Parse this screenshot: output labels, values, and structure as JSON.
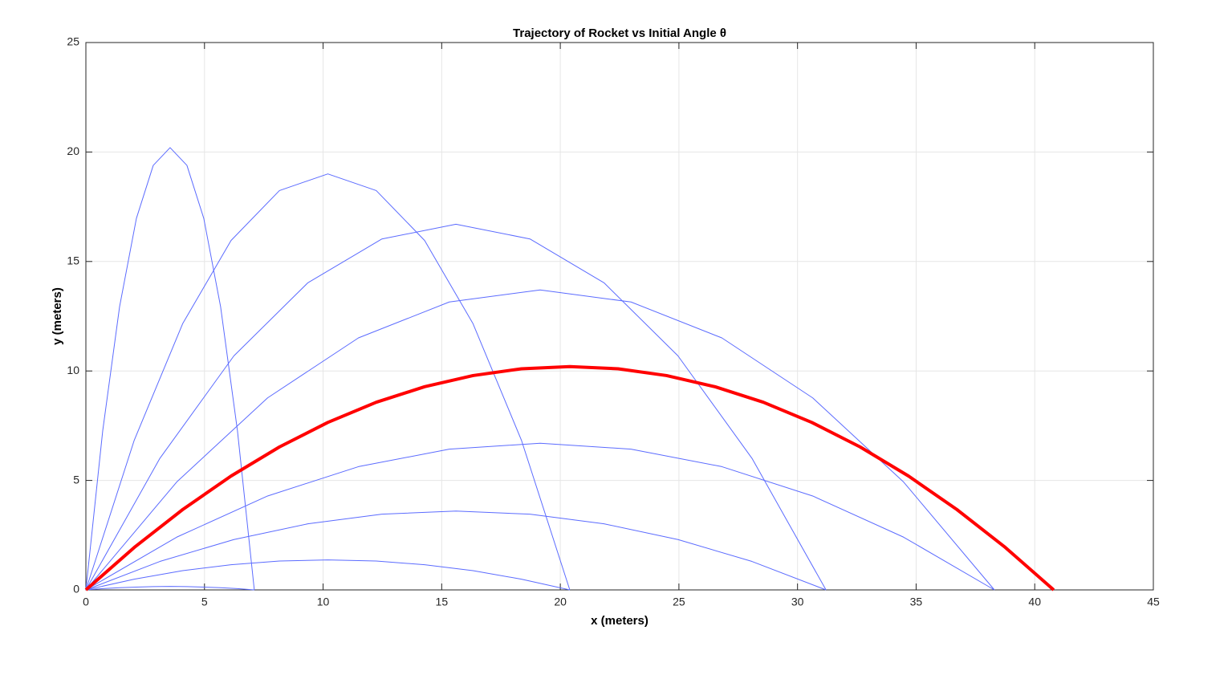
{
  "chart_data": {
    "type": "line",
    "title": "Trajectory of Rocket vs Initial Angle θ",
    "xlabel": "x (meters)",
    "ylabel": "y (meters)",
    "xlim": [
      0,
      45
    ],
    "ylim": [
      0,
      25
    ],
    "xticks": [
      0,
      5,
      10,
      15,
      20,
      25,
      30,
      35,
      40,
      45
    ],
    "yticks": [
      0,
      5,
      10,
      15,
      20,
      25
    ],
    "grid": true,
    "series": [
      {
        "color": "#5b6bff",
        "linewidth": 1,
        "x": [
          0,
          0.71,
          1.42,
          2.13,
          2.84,
          3.55,
          4.26,
          4.97,
          5.68,
          6.39,
          7.1
        ],
        "values": [
          0,
          7.27,
          12.93,
          16.97,
          19.39,
          20.2,
          19.39,
          16.97,
          12.93,
          7.27,
          0
        ]
      },
      {
        "color": "#5b6bff",
        "linewidth": 1,
        "x": [
          0,
          2.04,
          4.08,
          6.12,
          8.16,
          10.2,
          12.24,
          14.28,
          16.32,
          18.36,
          20.4
        ],
        "values": [
          0,
          6.84,
          12.16,
          15.96,
          18.24,
          19.0,
          18.24,
          15.96,
          12.16,
          6.84,
          0
        ]
      },
      {
        "color": "#5b6bff",
        "linewidth": 1,
        "x": [
          0,
          3.12,
          6.24,
          9.36,
          12.48,
          15.6,
          18.72,
          21.84,
          24.96,
          28.08,
          31.2
        ],
        "values": [
          0,
          6.01,
          10.69,
          14.03,
          16.03,
          16.7,
          16.03,
          14.03,
          10.69,
          6.01,
          0
        ]
      },
      {
        "color": "#5b6bff",
        "linewidth": 1,
        "x": [
          0,
          3.83,
          7.66,
          11.49,
          15.32,
          19.15,
          22.98,
          26.81,
          30.64,
          34.47,
          38.3
        ],
        "values": [
          0,
          4.93,
          8.77,
          11.51,
          13.15,
          13.7,
          13.15,
          11.51,
          8.77,
          4.93,
          0
        ]
      },
      {
        "color": "#5b6bff",
        "linewidth": 1,
        "x": [
          0,
          3.83,
          7.66,
          11.49,
          15.32,
          19.15,
          22.98,
          26.81,
          30.64,
          34.47,
          38.3
        ],
        "values": [
          0,
          2.41,
          4.29,
          5.63,
          6.43,
          6.7,
          6.43,
          5.63,
          4.29,
          2.41,
          0
        ]
      },
      {
        "color": "#5b6bff",
        "linewidth": 1,
        "x": [
          0,
          3.12,
          6.24,
          9.36,
          12.48,
          15.6,
          18.72,
          21.84,
          24.96,
          28.08,
          31.2
        ],
        "values": [
          0,
          1.3,
          2.3,
          3.02,
          3.46,
          3.6,
          3.46,
          3.02,
          2.3,
          1.3,
          0
        ]
      },
      {
        "color": "#5b6bff",
        "linewidth": 1,
        "x": [
          0,
          2.04,
          4.08,
          6.12,
          8.16,
          10.2,
          12.24,
          14.28,
          16.32,
          18.36,
          20.4
        ],
        "values": [
          0,
          0.49,
          0.88,
          1.15,
          1.32,
          1.37,
          1.32,
          1.15,
          0.88,
          0.49,
          0
        ]
      },
      {
        "color": "#5b6bff",
        "linewidth": 1,
        "x": [
          0,
          0.71,
          1.42,
          2.13,
          2.84,
          3.55,
          4.26,
          4.97,
          5.68,
          6.39,
          7.1
        ],
        "values": [
          0,
          0.06,
          0.1,
          0.13,
          0.15,
          0.16,
          0.15,
          0.13,
          0.1,
          0.06,
          0
        ]
      },
      {
        "color": "#ff0000",
        "linewidth": 4,
        "x": [
          0,
          2.04,
          4.08,
          6.12,
          8.16,
          10.2,
          12.24,
          14.28,
          16.32,
          18.36,
          20.4,
          22.44,
          24.48,
          26.52,
          28.56,
          30.6,
          32.64,
          34.68,
          36.72,
          38.76,
          40.8
        ],
        "values": [
          0,
          1.94,
          3.67,
          5.2,
          6.53,
          7.65,
          8.57,
          9.28,
          9.79,
          10.1,
          10.2,
          10.1,
          9.79,
          9.28,
          8.57,
          7.65,
          6.53,
          5.2,
          3.67,
          1.94,
          0
        ]
      }
    ]
  }
}
